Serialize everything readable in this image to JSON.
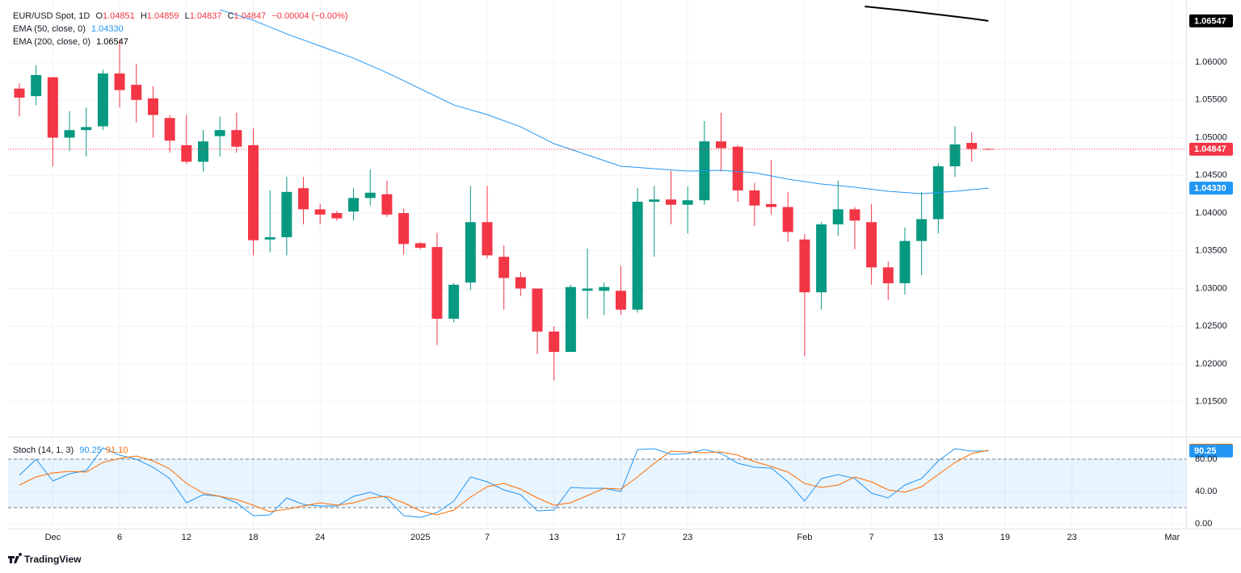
{
  "chart_data": {
    "type": "candlestick",
    "title": "EUR/USD Spot, 1D",
    "header": {
      "o_label": "O",
      "o": "1.04851",
      "h_label": "H",
      "h": "1.04859",
      "l_label": "L",
      "l": "1.04837",
      "c_label": "C",
      "c": "1.04847",
      "change": "−0.00004 (−0.00%)"
    },
    "up_color": "#089981",
    "down_color": "#f23645",
    "open": [
      1.0565,
      1.0555,
      1.058,
      1.05,
      1.051,
      1.0515,
      1.0585,
      1.057,
      1.0552,
      1.0526,
      1.049,
      1.0468,
      1.0502,
      1.051,
      1.049,
      1.0365,
      1.0368,
      1.0433,
      1.0405,
      1.04,
      1.0402,
      1.042,
      1.0425,
      1.04,
      1.036,
      1.0355,
      1.026,
      1.0308,
      1.0388,
      1.0342,
      1.0315,
      1.03,
      1.0243,
      1.0216,
      1.0297,
      1.0297,
      1.0297,
      1.0272,
      1.0415,
      1.0418,
      1.0411,
      1.0417,
      1.0495,
      1.0488,
      1.043,
      1.0412,
      1.0408,
      1.0365,
      1.0295,
      1.0385,
      1.0405,
      1.0388,
      1.0328,
      1.0307,
      1.0363,
      1.0392,
      1.0462,
      1.0493,
      1.04851
    ],
    "high": [
      1.0572,
      1.0596,
      1.058,
      1.0535,
      1.054,
      1.059,
      1.063,
      1.0598,
      1.0568,
      1.053,
      1.053,
      1.051,
      1.0528,
      1.0533,
      1.0512,
      1.043,
      1.0448,
      1.0448,
      1.0412,
      1.0403,
      1.0433,
      1.0458,
      1.0443,
      1.0406,
      1.0362,
      1.0374,
      1.0307,
      1.0436,
      1.0436,
      1.0357,
      1.0322,
      1.03,
      1.025,
      1.0305,
      1.0353,
      1.0308,
      1.033,
      1.0433,
      1.0436,
      1.0456,
      1.0435,
      1.0522,
      1.0533,
      1.049,
      1.044,
      1.047,
      1.0428,
      1.0372,
      1.0388,
      1.0443,
      1.0408,
      1.0412,
      1.0336,
      1.0381,
      1.0428,
      1.0466,
      1.0515,
      1.0507,
      1.04859
    ],
    "low": [
      1.0528,
      1.0543,
      1.0462,
      1.0482,
      1.0475,
      1.051,
      1.054,
      1.052,
      1.05,
      1.048,
      1.0465,
      1.0455,
      1.0475,
      1.048,
      1.0344,
      1.0348,
      1.0344,
      1.0385,
      1.0385,
      1.039,
      1.039,
      1.041,
      1.0395,
      1.0345,
      1.0352,
      1.0225,
      1.0255,
      1.0298,
      1.034,
      1.0272,
      1.029,
      1.0213,
      1.0178,
      1.0216,
      1.026,
      1.0265,
      1.0265,
      1.0268,
      1.0342,
      1.0385,
      1.0373,
      1.0411,
      1.0455,
      1.0415,
      1.0383,
      1.0398,
      1.0362,
      1.021,
      1.0272,
      1.037,
      1.0352,
      1.0305,
      1.0285,
      1.0292,
      1.0318,
      1.0373,
      1.0448,
      1.0468,
      1.04837
    ],
    "close": [
      1.0553,
      1.0583,
      1.05,
      1.051,
      1.0514,
      1.0585,
      1.0563,
      1.055,
      1.053,
      1.0496,
      1.0468,
      1.0495,
      1.051,
      1.0488,
      1.0364,
      1.0368,
      1.0428,
      1.0405,
      1.0398,
      1.0393,
      1.042,
      1.0427,
      1.0398,
      1.0359,
      1.0354,
      1.026,
      1.0305,
      1.0388,
      1.0344,
      1.0314,
      1.03,
      1.0243,
      1.0216,
      1.0302,
      1.03,
      1.0302,
      1.0272,
      1.0415,
      1.0418,
      1.0411,
      1.0417,
      1.0495,
      1.0486,
      1.043,
      1.041,
      1.0408,
      1.0375,
      1.0295,
      1.0385,
      1.0405,
      1.039,
      1.0328,
      1.0307,
      1.0363,
      1.0392,
      1.0462,
      1.0491,
      1.0485,
      1.04847
    ],
    "xlim": [
      -0.677,
      69.83
    ],
    "xticks": [
      {
        "value": 2,
        "label": "Dec"
      },
      {
        "value": 6,
        "label": "6"
      },
      {
        "value": 10,
        "label": "12"
      },
      {
        "value": 14,
        "label": "18"
      },
      {
        "value": 18,
        "label": "24"
      },
      {
        "value": 24,
        "label": "2025"
      },
      {
        "value": 28,
        "label": "7"
      },
      {
        "value": 32,
        "label": "13"
      },
      {
        "value": 36,
        "label": "17"
      },
      {
        "value": 40,
        "label": "23"
      },
      {
        "value": 47,
        "label": "Feb"
      },
      {
        "value": 51,
        "label": "7"
      },
      {
        "value": 55,
        "label": "13"
      },
      {
        "value": 59,
        "label": "19"
      },
      {
        "value": 63,
        "label": "23"
      },
      {
        "value": 69,
        "label": "Mar"
      }
    ],
    "ylim": [
      1.01048,
      1.06824
    ],
    "yticks": [
      {
        "value": 1.015,
        "label": "1.01500"
      },
      {
        "value": 1.02,
        "label": "1.02000"
      },
      {
        "value": 1.025,
        "label": "1.02500"
      },
      {
        "value": 1.03,
        "label": "1.03000"
      },
      {
        "value": 1.035,
        "label": "1.03500"
      },
      {
        "value": 1.04,
        "label": "1.04000"
      },
      {
        "value": 1.045,
        "label": "1.04500"
      },
      {
        "value": 1.05,
        "label": "1.05000"
      },
      {
        "value": 1.055,
        "label": "1.05500"
      },
      {
        "value": 1.06,
        "label": "1.06000"
      }
    ],
    "grid": true,
    "last_price": {
      "value": 1.04847,
      "label": "1.04847",
      "color": "#f23645"
    },
    "overlays": [
      {
        "name": "EMA (50, close, 0)",
        "value_label": "1.04330",
        "color": "#2196f3",
        "x": [
          12,
          14,
          16,
          18,
          20,
          22,
          24,
          26,
          28,
          30,
          32,
          34,
          36,
          38,
          40,
          42,
          44,
          46,
          48,
          50,
          52,
          54,
          56,
          58
        ],
        "values": [
          1.06695,
          1.06556,
          1.06374,
          1.06214,
          1.06053,
          1.05861,
          1.05647,
          1.05433,
          1.05305,
          1.05144,
          1.0492,
          1.0477,
          1.0462,
          1.04588,
          1.04556,
          1.04567,
          1.04535,
          1.04449,
          1.04385,
          1.04342,
          1.04289,
          1.04257,
          1.04289,
          1.0433
        ]
      },
      {
        "name": "EMA (200, close, 0)",
        "value_label": "1.06547",
        "color": "#000000",
        "x": [
          50.6,
          53,
          55,
          57,
          58
        ],
        "values": [
          1.06738,
          1.06684,
          1.06631,
          1.06578,
          1.06547
        ]
      }
    ],
    "stoch": {
      "name": "Stoch (14, 1, 3)",
      "ylim": [
        -6,
        104
      ],
      "yticks": [
        {
          "value": 0,
          "label": "0.00"
        },
        {
          "value": 40,
          "label": "40.00"
        },
        {
          "value": 80,
          "label": "80.00"
        }
      ],
      "band": [
        20,
        80
      ],
      "series": [
        {
          "color": "#2196f3",
          "value_label": "90.25",
          "values": [
            60,
            80,
            53,
            62,
            66,
            94,
            85,
            80,
            70,
            56,
            26,
            36,
            34,
            26,
            10,
            11,
            32,
            24,
            22,
            22,
            34,
            39,
            32,
            10,
            8,
            14,
            28,
            58,
            52,
            42,
            36,
            16,
            17,
            45,
            44,
            44,
            40,
            92,
            93,
            86,
            87,
            92,
            87,
            75,
            70,
            69,
            52,
            28,
            56,
            61,
            56,
            38,
            32,
            48,
            56,
            78,
            93,
            90,
            90.25
          ]
        },
        {
          "color": "#ff6d00",
          "value_label": "91.10",
          "values": [
            48,
            58,
            63,
            65,
            64,
            76,
            81,
            84,
            78,
            68,
            50,
            38,
            34,
            30,
            23,
            15,
            18,
            22,
            26,
            23,
            26,
            32,
            34,
            26,
            16,
            11,
            17,
            33,
            46,
            50,
            43,
            32,
            23,
            26,
            35,
            44,
            43,
            58,
            75,
            90,
            89,
            88,
            89,
            85,
            77,
            71,
            64,
            50,
            45,
            48,
            58,
            52,
            42,
            39,
            46,
            61,
            76,
            87,
            91.1
          ]
        }
      ]
    },
    "brand": "TradingView"
  }
}
